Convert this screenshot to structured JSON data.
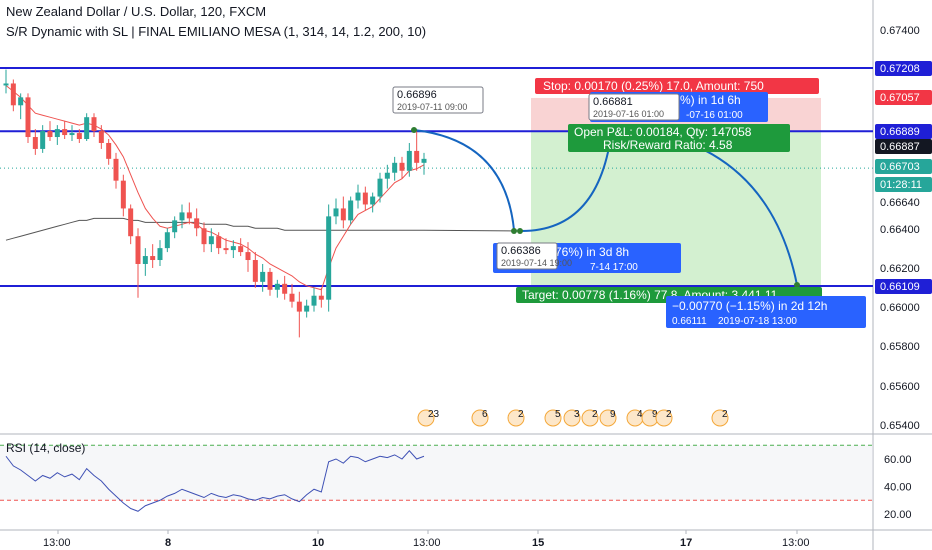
{
  "header": {
    "symbol_line": "New Zealand Dollar / U.S. Dollar, 120, FXCM",
    "indicator_line": "S/R Dynamic with SL | FINAL EMILIANO MESA (1, 314, 14, 1.2, 200, 10)",
    "rsi_label": "RSI (14, close)"
  },
  "colors": {
    "up": "#26a69a",
    "down": "#ef5350",
    "sr_line": "#1f1fd6",
    "ema": "#ef5350",
    "ma": "#555555",
    "projection": "#1565c0",
    "rsi": "#3f51b5",
    "stop_zone": "#f8c8c8",
    "target_zone": "#c8ecc4"
  },
  "chart_data": {
    "type": "candlestick",
    "y_axis_ticks": [
      "0.67400",
      "0.66640",
      "0.66400",
      "0.66200",
      "0.66000",
      "0.65800",
      "0.65600",
      "0.65400"
    ],
    "x_axis_ticks": [
      "13:00",
      "8",
      "10",
      "13:00",
      "15",
      "17",
      "13:00"
    ],
    "price_labels": [
      {
        "value": "0.67208",
        "type": "sr"
      },
      {
        "value": "0.67057",
        "type": "stop"
      },
      {
        "value": "0.66889",
        "type": "sr"
      },
      {
        "value": "0.66887",
        "type": "last"
      },
      {
        "value": "0.66703",
        "type": "current"
      },
      {
        "value": "01:28:11",
        "type": "countdown"
      },
      {
        "value": "0.66109",
        "type": "sr"
      }
    ],
    "sr_levels": [
      0.67208,
      0.66889,
      0.66109
    ],
    "current_price": 0.66703,
    "candles": [
      [
        0.6712,
        0.672,
        0.6708,
        0.6713
      ],
      [
        0.6713,
        0.6715,
        0.6699,
        0.6702
      ],
      [
        0.6702,
        0.6708,
        0.6695,
        0.6706
      ],
      [
        0.6706,
        0.6708,
        0.6683,
        0.6686
      ],
      [
        0.6686,
        0.669,
        0.6677,
        0.668
      ],
      [
        0.668,
        0.6692,
        0.6678,
        0.6689
      ],
      [
        0.6689,
        0.6694,
        0.6684,
        0.6686
      ],
      [
        0.6686,
        0.6692,
        0.6682,
        0.669
      ],
      [
        0.669,
        0.6694,
        0.6685,
        0.6687
      ],
      [
        0.6687,
        0.6692,
        0.6684,
        0.6688
      ],
      [
        0.6688,
        0.669,
        0.6683,
        0.6685
      ],
      [
        0.6685,
        0.6698,
        0.6684,
        0.6696
      ],
      [
        0.6696,
        0.6698,
        0.6686,
        0.6689
      ],
      [
        0.6689,
        0.6692,
        0.668,
        0.6683
      ],
      [
        0.6683,
        0.6685,
        0.6672,
        0.6675
      ],
      [
        0.6675,
        0.6678,
        0.666,
        0.6664
      ],
      [
        0.6664,
        0.6667,
        0.6646,
        0.665
      ],
      [
        0.665,
        0.6652,
        0.6632,
        0.6636
      ],
      [
        0.6636,
        0.664,
        0.6605,
        0.6622
      ],
      [
        0.6622,
        0.663,
        0.6616,
        0.6626
      ],
      [
        0.6626,
        0.6632,
        0.662,
        0.6624
      ],
      [
        0.6624,
        0.6634,
        0.6621,
        0.663
      ],
      [
        0.663,
        0.664,
        0.6628,
        0.6638
      ],
      [
        0.6638,
        0.6646,
        0.6635,
        0.6644
      ],
      [
        0.6644,
        0.6652,
        0.664,
        0.6648
      ],
      [
        0.6648,
        0.6653,
        0.6642,
        0.6645
      ],
      [
        0.6645,
        0.665,
        0.6636,
        0.664
      ],
      [
        0.664,
        0.6643,
        0.6628,
        0.6632
      ],
      [
        0.6632,
        0.664,
        0.6628,
        0.6636
      ],
      [
        0.6636,
        0.6638,
        0.6627,
        0.663
      ],
      [
        0.663,
        0.6635,
        0.6627,
        0.6629
      ],
      [
        0.6629,
        0.6634,
        0.6625,
        0.6631
      ],
      [
        0.6631,
        0.6635,
        0.6626,
        0.6628
      ],
      [
        0.6628,
        0.6633,
        0.6618,
        0.6624
      ],
      [
        0.6624,
        0.6628,
        0.661,
        0.6613
      ],
      [
        0.6613,
        0.6622,
        0.6608,
        0.6618
      ],
      [
        0.6618,
        0.662,
        0.6606,
        0.6609
      ],
      [
        0.6609,
        0.6614,
        0.6605,
        0.6612
      ],
      [
        0.6612,
        0.6616,
        0.6604,
        0.6607
      ],
      [
        0.6607,
        0.6612,
        0.66,
        0.6603
      ],
      [
        0.6603,
        0.6608,
        0.6585,
        0.6598
      ],
      [
        0.6598,
        0.6604,
        0.6595,
        0.6601
      ],
      [
        0.6601,
        0.661,
        0.6598,
        0.6606
      ],
      [
        0.6606,
        0.661,
        0.66,
        0.6604
      ],
      [
        0.6604,
        0.6652,
        0.6598,
        0.6646
      ],
      [
        0.6646,
        0.6655,
        0.6642,
        0.665
      ],
      [
        0.665,
        0.6656,
        0.664,
        0.6644
      ],
      [
        0.6644,
        0.6656,
        0.6642,
        0.6654
      ],
      [
        0.6654,
        0.6662,
        0.665,
        0.6658
      ],
      [
        0.6658,
        0.6661,
        0.6649,
        0.6652
      ],
      [
        0.6652,
        0.6658,
        0.6648,
        0.6656
      ],
      [
        0.6656,
        0.6668,
        0.6653,
        0.6665
      ],
      [
        0.6665,
        0.6672,
        0.666,
        0.6668
      ],
      [
        0.6668,
        0.6676,
        0.6664,
        0.6673
      ],
      [
        0.6673,
        0.6676,
        0.6665,
        0.6669
      ],
      [
        0.6669,
        0.6683,
        0.6666,
        0.6679
      ],
      [
        0.6679,
        0.669,
        0.6669,
        0.6673
      ],
      [
        0.6673,
        0.6678,
        0.6667,
        0.6675
      ]
    ],
    "ema_values": [
      0.6712,
      0.6709,
      0.6706,
      0.6702,
      0.6698,
      0.6697,
      0.6696,
      0.6695,
      0.6694,
      0.6693,
      0.6692,
      0.6693,
      0.6692,
      0.669,
      0.6687,
      0.6682,
      0.6676,
      0.6667,
      0.6658,
      0.665,
      0.6645,
      0.6641,
      0.664,
      0.6641,
      0.6642,
      0.6643,
      0.6642,
      0.6639,
      0.6638,
      0.6636,
      0.6634,
      0.6633,
      0.6632,
      0.663,
      0.6627,
      0.6625,
      0.6622,
      0.662,
      0.6618,
      0.6616,
      0.6613,
      0.6611,
      0.661,
      0.6609,
      0.662,
      0.663,
      0.6636,
      0.6642,
      0.6647,
      0.6649,
      0.6651,
      0.6655,
      0.6659,
      0.6663,
      0.6665,
      0.6669,
      0.667,
      0.6672
    ],
    "ma_values": [
      0.6634,
      0.6635,
      0.6636,
      0.6637,
      0.6638,
      0.6639,
      0.664,
      0.6641,
      0.6642,
      0.6643,
      0.6644,
      0.6644,
      0.6645,
      0.6645,
      0.6645,
      0.6645,
      0.6645,
      0.6644,
      0.6644,
      0.6643,
      0.6643,
      0.6643,
      0.6643,
      0.6643,
      0.6643,
      0.6643,
      0.6643,
      0.6642,
      0.6642,
      0.6642,
      0.6642,
      0.6641,
      0.6641,
      0.6641,
      0.664,
      0.664,
      0.664,
      0.664,
      0.6639,
      0.6639,
      0.6639,
      0.6639,
      0.6639,
      0.6639,
      0.6639,
      0.6639,
      0.6639,
      0.6639,
      0.6639,
      0.6639,
      0.6639,
      0.6639,
      0.6639,
      0.6639,
      0.6639,
      0.6639,
      0.6639,
      0.6639
    ],
    "rsi": {
      "y_axis_ticks": [
        "60.00",
        "40.00",
        "20.00"
      ],
      "levels": [
        70,
        30
      ],
      "values": [
        62,
        55,
        52,
        48,
        44,
        48,
        46,
        50,
        47,
        49,
        45,
        53,
        48,
        44,
        38,
        33,
        28,
        24,
        22,
        26,
        28,
        30,
        33,
        35,
        38,
        36,
        34,
        32,
        35,
        33,
        32,
        34,
        33,
        31,
        30,
        32,
        31,
        33,
        34,
        31,
        29,
        34,
        38,
        36,
        58,
        60,
        57,
        62,
        61,
        58,
        60,
        62,
        61,
        63,
        60,
        66,
        60,
        62
      ]
    },
    "annotations": [
      {
        "kind": "price_callout",
        "price": "0.66896",
        "time": "2019-07-11 09:00"
      },
      {
        "kind": "price_callout",
        "price": "0.66881",
        "time": "2019-07-16 01:00"
      },
      {
        "kind": "price_callout",
        "price": "0.66386",
        "time": "2019-07-14 19:00"
      },
      {
        "kind": "price_callout",
        "price": "0.66111",
        "time": "2019-07-18 13:00"
      }
    ],
    "position": {
      "stop_text": "Stop: 0.00170 (0.25%) 17.0, Amount: 750",
      "open_pl_text": "Open P&L: 0.00184, Qty: 147058",
      "risk_reward_text": "Risk/Reward Ratio: 4.58",
      "target_text": "Target: 0.00778 (1.16%) 77.8, Amount: 3 441.11"
    },
    "projections": [
      {
        "text": "%) in 1d 6h"
      },
      {
        "text": "-07-16 01:00"
      },
      {
        "text": "76%) in 3d 8h"
      },
      {
        "text": "7-14 17:00"
      },
      {
        "text": "−0.00770 (−1.15%) in 2d 12h"
      }
    ],
    "event_badges": [
      "23",
      "6",
      "2",
      "5",
      "3",
      "2",
      "9",
      "4",
      "9",
      "2",
      "2"
    ]
  }
}
